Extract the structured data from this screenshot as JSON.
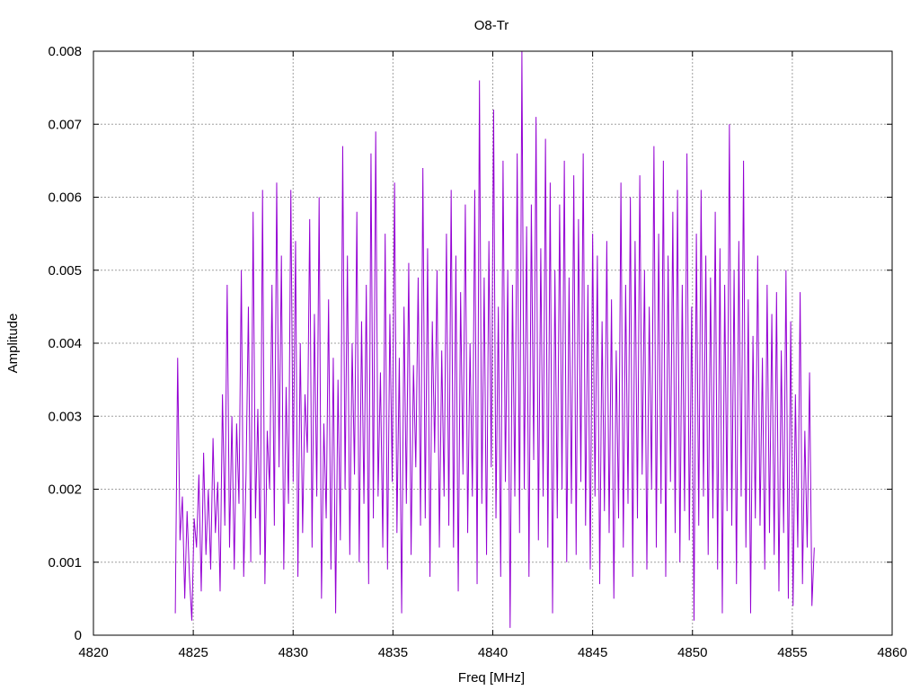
{
  "chart_data": {
    "type": "line",
    "title": "O8-Tr",
    "xlabel": "Freq [MHz]",
    "ylabel": "Amplitude",
    "xlim": [
      4820,
      4860
    ],
    "ylim": [
      0,
      0.008
    ],
    "xticks": [
      "4820",
      "4825",
      "4830",
      "4835",
      "4840",
      "4845",
      "4850",
      "4855",
      "4860"
    ],
    "yticks": [
      "0",
      "0.001",
      "0.002",
      "0.003",
      "0.004",
      "0.005",
      "0.006",
      "0.007",
      "0.008"
    ],
    "grid": true,
    "series_color": "#9400d3",
    "series": [
      {
        "x_start": 4824.1,
        "x_end": 4856.1,
        "values": [
          0.0003,
          0.0038,
          0.0013,
          0.0019,
          0.0005,
          0.0017,
          0.0008,
          0.0002,
          0.0016,
          0.0012,
          0.0022,
          0.0006,
          0.0025,
          0.0011,
          0.002,
          0.0009,
          0.0027,
          0.0014,
          0.0021,
          0.0006,
          0.0033,
          0.0015,
          0.0048,
          0.0012,
          0.003,
          0.0009,
          0.0029,
          0.0018,
          0.005,
          0.0008,
          0.0022,
          0.0045,
          0.001,
          0.0058,
          0.0016,
          0.0031,
          0.0011,
          0.0061,
          0.0007,
          0.0028,
          0.002,
          0.0048,
          0.0015,
          0.0062,
          0.0023,
          0.0052,
          0.0009,
          0.0034,
          0.0018,
          0.0061,
          0.0021,
          0.0054,
          0.0008,
          0.004,
          0.0014,
          0.0033,
          0.0025,
          0.0057,
          0.0012,
          0.0044,
          0.0019,
          0.006,
          0.0005,
          0.0029,
          0.0016,
          0.0046,
          0.0009,
          0.0038,
          0.0003,
          0.0035,
          0.0013,
          0.0067,
          0.002,
          0.0052,
          0.0011,
          0.004,
          0.0022,
          0.0058,
          0.001,
          0.0043,
          0.0018,
          0.0048,
          0.0007,
          0.0066,
          0.0016,
          0.0069,
          0.0019,
          0.0036,
          0.0012,
          0.0055,
          0.0009,
          0.0044,
          0.0021,
          0.0062,
          0.0014,
          0.0038,
          0.0003,
          0.0045,
          0.0018,
          0.0051,
          0.0011,
          0.0037,
          0.0023,
          0.0049,
          0.0015,
          0.0064,
          0.0016,
          0.0053,
          0.0008,
          0.0043,
          0.0025,
          0.005,
          0.0012,
          0.0039,
          0.0019,
          0.0055,
          0.0015,
          0.0061,
          0.0012,
          0.0052,
          0.0006,
          0.0047,
          0.0022,
          0.0059,
          0.0014,
          0.004,
          0.0019,
          0.0061,
          0.0007,
          0.0076,
          0.0018,
          0.0049,
          0.0011,
          0.0054,
          0.0023,
          0.0072,
          0.0016,
          0.0045,
          0.0008,
          0.0065,
          0.0021,
          0.005,
          0.0001,
          0.0048,
          0.0019,
          0.0066,
          0.0014,
          0.008,
          0.002,
          0.0056,
          0.0008,
          0.0059,
          0.0024,
          0.0071,
          0.0013,
          0.0053,
          0.0019,
          0.0068,
          0.0012,
          0.0062,
          0.0003,
          0.005,
          0.0016,
          0.0059,
          0.002,
          0.0065,
          0.001,
          0.0049,
          0.0018,
          0.0063,
          0.0011,
          0.0057,
          0.0021,
          0.0066,
          0.0015,
          0.0048,
          0.0009,
          0.0055,
          0.0019,
          0.0052,
          0.0007,
          0.0043,
          0.0017,
          0.0054,
          0.0014,
          0.0046,
          0.0005,
          0.0039,
          0.0016,
          0.0062,
          0.0012,
          0.0048,
          0.0018,
          0.006,
          0.0008,
          0.0054,
          0.0016,
          0.0063,
          0.0022,
          0.005,
          0.0009,
          0.0045,
          0.002,
          0.0067,
          0.0012,
          0.0055,
          0.0018,
          0.0065,
          0.0008,
          0.0052,
          0.0021,
          0.0058,
          0.0014,
          0.0061,
          0.001,
          0.0048,
          0.0017,
          0.0066,
          0.0013,
          0.0045,
          0.0002,
          0.0055,
          0.0015,
          0.0061,
          0.0019,
          0.0052,
          0.0011,
          0.0049,
          0.0016,
          0.0058,
          0.0009,
          0.0053,
          0.0003,
          0.0048,
          0.0017,
          0.007,
          0.0015,
          0.005,
          0.0007,
          0.0054,
          0.0019,
          0.0065,
          0.0012,
          0.0046,
          0.0003,
          0.0041,
          0.0016,
          0.0052,
          0.0015,
          0.0038,
          0.0009,
          0.0048,
          0.0014,
          0.0044,
          0.0011,
          0.0047,
          0.0006,
          0.0039,
          0.0014,
          0.005,
          0.0005,
          0.0043,
          0.0004,
          0.0033,
          0.0012,
          0.0047,
          0.0007,
          0.0028,
          0.0012,
          0.0036,
          0.0004,
          0.0012
        ]
      }
    ]
  }
}
